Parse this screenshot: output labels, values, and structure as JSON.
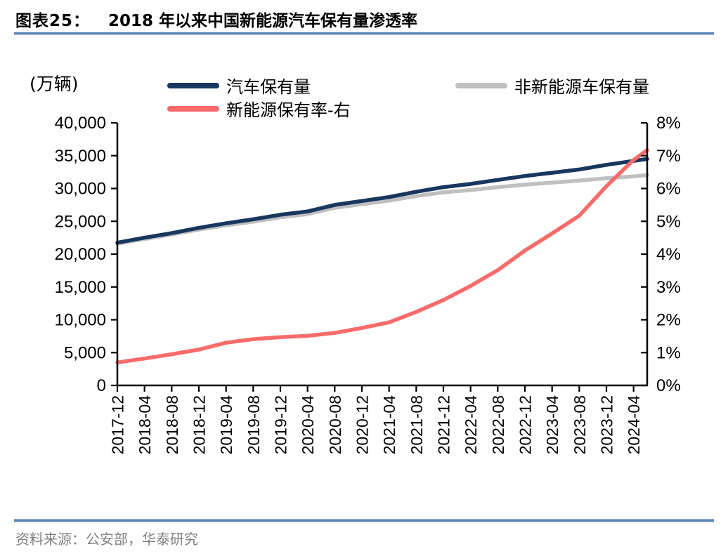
{
  "header": {
    "figure_label": "图表25：",
    "title": "2018 年以来中国新能源汽车保有量渗透率"
  },
  "axis_unit_label": "(万辆)",
  "legend": {
    "items": [
      {
        "label": "汽车保有量",
        "color": "#17375e"
      },
      {
        "label": "非新能源车保有量",
        "color": "#c0c0c0"
      },
      {
        "label": "新能源保有率-右",
        "color": "#f96b6b"
      }
    ]
  },
  "source_line": "资料来源：公安部，华泰研究",
  "colors": {
    "series_total": "#17375e",
    "series_non_nev": "#c0c0c0",
    "series_penetration": "#f96b6b",
    "accent_rule": "#5b84b5",
    "axis": "#000000",
    "source_text": "#808080"
  },
  "chart_data": {
    "type": "line",
    "title": "2018 年以来中国新能源汽车保有量渗透率",
    "grid": false,
    "legend_position": "top",
    "x_tick_labels": [
      "2017-12",
      "2018-04",
      "2018-08",
      "2018-12",
      "2019-04",
      "2019-08",
      "2019-12",
      "2020-04",
      "2020-08",
      "2020-12",
      "2021-04",
      "2021-08",
      "2021-12",
      "2022-04",
      "2022-08",
      "2022-12",
      "2023-04",
      "2023-08",
      "2023-12",
      "2024-04"
    ],
    "x_tick_months": [
      0,
      4,
      8,
      12,
      16,
      20,
      24,
      28,
      32,
      36,
      40,
      44,
      48,
      52,
      56,
      60,
      64,
      68,
      72,
      76
    ],
    "x_axis_span_months": 78,
    "left_axis": {
      "unit": "万辆",
      "min": 0,
      "max": 40000,
      "tick_step": 5000,
      "tick_labels": [
        "0",
        "5,000",
        "10,000",
        "15,000",
        "20,000",
        "25,000",
        "30,000",
        "35,000",
        "40,000"
      ]
    },
    "right_axis": {
      "unit": "%",
      "min": 0,
      "max": 8,
      "tick_step": 1,
      "tick_labels": [
        "0%",
        "1%",
        "2%",
        "3%",
        "4%",
        "5%",
        "6%",
        "7%",
        "8%"
      ]
    },
    "series": [
      {
        "name": "汽车保有量",
        "axis": "left",
        "color": "#17375e",
        "x_months": [
          0,
          4,
          8,
          12,
          16,
          20,
          24,
          28,
          32,
          36,
          40,
          44,
          48,
          52,
          56,
          60,
          64,
          68,
          72,
          76,
          78
        ],
        "values": [
          21743,
          22500,
          23200,
          24000,
          24700,
          25300,
          26000,
          26500,
          27500,
          28100,
          28700,
          29500,
          30200,
          30700,
          31300,
          31900,
          32400,
          32900,
          33600,
          34200,
          34500
        ]
      },
      {
        "name": "非新能源车保有量",
        "axis": "left",
        "color": "#c0c0c0",
        "x_months": [
          0,
          4,
          8,
          12,
          16,
          20,
          24,
          28,
          32,
          36,
          40,
          44,
          48,
          52,
          56,
          60,
          64,
          68,
          72,
          76,
          78
        ],
        "values": [
          21590,
          22315,
          22979,
          23739,
          24380,
          24942,
          25619,
          26100,
          27060,
          27608,
          28150,
          28840,
          29416,
          29770,
          30200,
          30590,
          30900,
          31200,
          31559,
          31850,
          32028
        ]
      },
      {
        "name": "新能源保有率-右",
        "axis": "right",
        "color": "#f96b6b",
        "x_months": [
          0,
          4,
          8,
          12,
          16,
          20,
          24,
          28,
          32,
          36,
          40,
          44,
          48,
          52,
          56,
          60,
          64,
          68,
          72,
          76,
          78
        ],
        "values": [
          0.7,
          0.82,
          0.95,
          1.09,
          1.3,
          1.41,
          1.47,
          1.51,
          1.6,
          1.75,
          1.92,
          2.24,
          2.6,
          3.03,
          3.51,
          4.11,
          4.63,
          5.17,
          6.07,
          6.87,
          7.17
        ]
      }
    ]
  }
}
